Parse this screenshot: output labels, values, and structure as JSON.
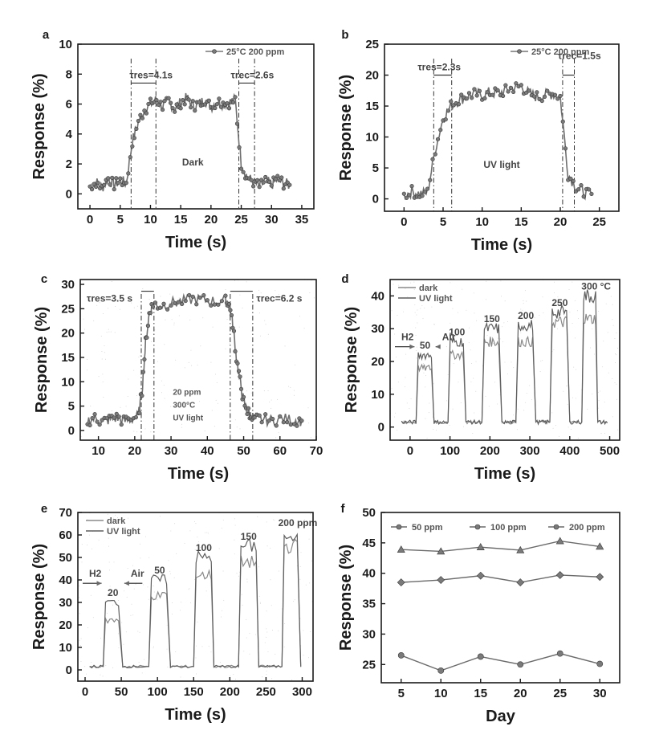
{
  "chart_data": [
    {
      "panel": "a",
      "type": "line",
      "title": "",
      "xlabel": "Time (s)",
      "ylabel": "Response (%)",
      "xlim": [
        -2,
        37
      ],
      "ylim": [
        -1,
        10
      ],
      "xticks": [
        0,
        5,
        10,
        15,
        20,
        25,
        30,
        35
      ],
      "yticks": [
        0,
        2,
        4,
        6,
        8,
        10
      ],
      "legend": "25°C 200 ppm",
      "tau_res_label": "τres=4.1s",
      "tau_rec_label": "τrec=2.6s",
      "condition": "Dark",
      "on_s": 6.8,
      "on_end_s": 10.9,
      "off_s": 24.6,
      "off_end_s": 27.2,
      "baseline": 0.6,
      "plateau": 6.0,
      "series": [
        {
          "name": "25°C 200 ppm",
          "x": [
            0,
            1,
            2,
            3,
            4,
            5,
            6,
            7,
            8,
            9,
            10,
            11,
            12,
            13,
            14,
            15,
            16,
            17,
            18,
            19,
            20,
            21,
            22,
            23,
            24,
            25,
            26,
            27,
            28,
            29,
            30,
            31,
            32,
            33
          ],
          "y": [
            0.5,
            0.8,
            0.4,
            1.0,
            0.6,
            0.9,
            0.7,
            3.5,
            4.8,
            5.6,
            6.0,
            6.3,
            5.8,
            6.2,
            5.7,
            6.1,
            6.4,
            5.9,
            6.0,
            6.3,
            5.8,
            6.2,
            6.0,
            6.1,
            6.3,
            2.0,
            1.1,
            0.8,
            0.5,
            0.9,
            0.6,
            1.0,
            0.7,
            0.6
          ]
        }
      ]
    },
    {
      "panel": "b",
      "type": "line",
      "title": "",
      "xlabel": "Time (s)",
      "ylabel": "Response (%)",
      "xlim": [
        -2.5,
        27.5
      ],
      "ylim": [
        -2,
        25
      ],
      "xticks": [
        0,
        5,
        10,
        15,
        20,
        25
      ],
      "yticks": [
        0,
        5,
        10,
        15,
        20,
        25
      ],
      "legend": "25°C 200 ppm",
      "tau_res_label": "τres=2.3s",
      "tau_rec_label": "τrec=1.5s",
      "condition": "UV light",
      "on_s": 3.8,
      "on_end_s": 6.1,
      "off_s": 20.3,
      "off_end_s": 21.8,
      "baseline": 0.8,
      "plateau": 16.8,
      "series": [
        {
          "name": "25°C 200 ppm",
          "x": [
            0,
            1,
            2,
            3,
            4,
            5,
            6,
            7,
            8,
            9,
            10,
            11,
            12,
            13,
            14,
            15,
            16,
            17,
            18,
            19,
            20,
            21,
            22,
            23,
            24
          ],
          "y": [
            0.5,
            1.2,
            0.8,
            1.0,
            8.0,
            13.0,
            15.0,
            16.0,
            16.5,
            17.0,
            16.8,
            17.2,
            17.0,
            17.5,
            18.0,
            18.2,
            17.0,
            16.5,
            16.8,
            17.0,
            16.5,
            4.0,
            2.0,
            1.0,
            0.8
          ]
        }
      ]
    },
    {
      "panel": "c",
      "type": "line",
      "title": "",
      "xlabel": "Time (s)",
      "ylabel": "Response (%)",
      "xlim": [
        5,
        70
      ],
      "ylim": [
        -2,
        31
      ],
      "xticks": [
        10,
        20,
        30,
        40,
        50,
        60,
        70
      ],
      "yticks": [
        0,
        5,
        10,
        15,
        20,
        25,
        30
      ],
      "tau_res_label": "τres=3.5 s",
      "tau_rec_label": "τrec=6.2 s",
      "condition_lines": [
        "20 ppm",
        "300°C",
        "UV light"
      ],
      "on_s": 21.8,
      "on_end_s": 25.3,
      "off_s": 46.3,
      "off_end_s": 52.5,
      "baseline": 2.0,
      "plateau": 26.0,
      "series": [
        {
          "name": "20 ppm 300°C UV light",
          "x": [
            7,
            9,
            11,
            13,
            15,
            17,
            19,
            21,
            22,
            23,
            24,
            25,
            27,
            30,
            33,
            36,
            39,
            42,
            45,
            46,
            47,
            48,
            49,
            50,
            51,
            52,
            53,
            55,
            58,
            61,
            64,
            66
          ],
          "y": [
            2.0,
            2.5,
            1.8,
            2.2,
            2.6,
            1.9,
            2.3,
            3.0,
            8.0,
            18.0,
            24.0,
            26.0,
            25.5,
            26.2,
            26.5,
            27.0,
            26.8,
            26.5,
            26.6,
            26.0,
            22.0,
            15.0,
            10.0,
            6.0,
            4.0,
            3.0,
            2.5,
            2.3,
            2.0,
            2.4,
            2.1,
            2.0
          ]
        }
      ]
    },
    {
      "panel": "d",
      "type": "line",
      "title": "",
      "xlabel": "Time (s)",
      "ylabel": "Response (%)",
      "xlim": [
        -50,
        525
      ],
      "ylim": [
        -4,
        45
      ],
      "xticks": [
        0,
        100,
        200,
        300,
        400,
        500
      ],
      "yticks": [
        0,
        10,
        20,
        30,
        40
      ],
      "legend": [
        "dark",
        "UV light"
      ],
      "arrow_labels": {
        "gas_in": "H2",
        "gas_out": "Air"
      },
      "concentration_labels": [
        "50",
        "100",
        "150",
        "200",
        "250",
        "300 °C"
      ],
      "series": [
        {
          "name": "dark",
          "pulses": [
            [
              15,
              60
            ],
            [
              95,
              140
            ],
            [
              180,
              230
            ],
            [
              265,
              315
            ],
            [
              350,
              400
            ],
            [
              430,
              470
            ]
          ],
          "peaks": [
            18,
            22,
            26,
            26,
            32,
            33
          ],
          "baseline": 1.5
        },
        {
          "name": "UV light",
          "pulses": [
            [
              15,
              60
            ],
            [
              95,
              140
            ],
            [
              180,
              230
            ],
            [
              265,
              315
            ],
            [
              350,
              400
            ],
            [
              430,
              470
            ]
          ],
          "peaks": [
            22,
            26,
            30,
            31,
            35,
            40
          ],
          "baseline": 1.5
        }
      ]
    },
    {
      "panel": "e",
      "type": "line",
      "title": "",
      "xlabel": "Time (s)",
      "ylabel": "Response (%)",
      "xlim": [
        -10,
        315
      ],
      "ylim": [
        -5,
        70
      ],
      "xticks": [
        0,
        50,
        100,
        150,
        200,
        250,
        300
      ],
      "yticks": [
        0,
        10,
        20,
        30,
        40,
        50,
        60,
        70
      ],
      "legend": [
        "dark",
        "UV light"
      ],
      "arrow_labels": {
        "gas_in": "H2",
        "gas_out": "Air"
      },
      "concentration_labels": [
        "20",
        "50",
        "100",
        "150",
        "200 ppm"
      ],
      "series": [
        {
          "name": "dark",
          "pulses": [
            [
              25,
              52
            ],
            [
              88,
              118
            ],
            [
              150,
              178
            ],
            [
              212,
              240
            ],
            [
              272,
              298
            ]
          ],
          "peaks": [
            22,
            33,
            42,
            48,
            55
          ],
          "baseline": 1.5
        },
        {
          "name": "UV light",
          "pulses": [
            [
              25,
              52
            ],
            [
              88,
              118
            ],
            [
              150,
              178
            ],
            [
              212,
              240
            ],
            [
              272,
              298
            ]
          ],
          "peaks": [
            30,
            40,
            50,
            55,
            61
          ],
          "baseline": 1.5
        }
      ]
    },
    {
      "panel": "f",
      "type": "line",
      "title": "",
      "xlabel": "Day",
      "ylabel": "Response (%)",
      "xlim": [
        2.5,
        32.5
      ],
      "ylim": [
        22,
        50
      ],
      "xticks": [
        5,
        10,
        15,
        20,
        25,
        30
      ],
      "yticks": [
        25,
        30,
        35,
        40,
        45,
        50
      ],
      "x": [
        5,
        10,
        15,
        20,
        25,
        30
      ],
      "series": [
        {
          "name": "50 ppm",
          "values": [
            26.5,
            24.0,
            26.3,
            25.0,
            26.8,
            25.1
          ]
        },
        {
          "name": "100 ppm",
          "values": [
            38.5,
            38.9,
            39.6,
            38.5,
            39.7,
            39.4
          ]
        },
        {
          "name": "200 ppm",
          "values": [
            43.9,
            43.6,
            44.3,
            43.8,
            45.3,
            44.4
          ]
        }
      ]
    }
  ]
}
